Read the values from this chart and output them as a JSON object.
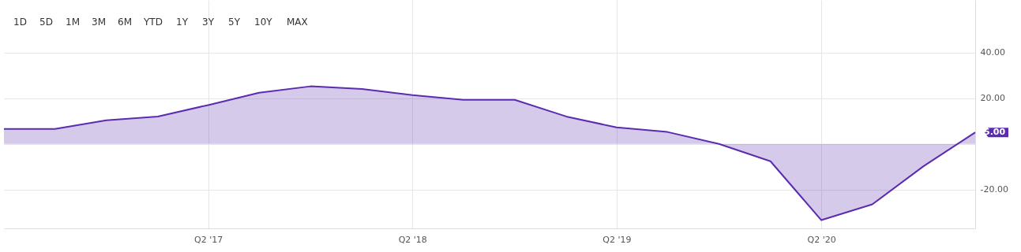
{
  "chart_data": {
    "type": "area",
    "x": [
      "2016-04-01",
      "2016-07-01",
      "2016-10-01",
      "2017-01-01",
      "2017-04-01",
      "2017-07-01",
      "2017-10-01",
      "2018-01-01",
      "2018-04-01",
      "2018-07-01",
      "2018-10-01",
      "2019-01-01",
      "2019-04-01",
      "2019-07-01",
      "2019-10-01",
      "2020-01-01",
      "2020-04-01",
      "2020-07-01",
      "2020-10-01",
      "2021-01-01"
    ],
    "series": [
      {
        "color": "#5b2bb0",
        "values": [
          6.5,
          6.5,
          10.3,
          12,
          17,
          22.4,
          25.2,
          24,
          21.4,
          19.3,
          19.3,
          12,
          7.2,
          5.2,
          0,
          -7.6,
          -33.4,
          -26.5,
          -9.7,
          5
        ]
      }
    ],
    "xlim": [
      "2016-04-01",
      "2021-01-01"
    ],
    "xticks": [
      {
        "value": "2017-04-01",
        "label": "Q2 '17"
      },
      {
        "value": "2018-04-01",
        "label": "Q2 '18"
      },
      {
        "value": "2019-04-01",
        "label": "Q2 '19"
      },
      {
        "value": "2020-04-01",
        "label": "Q2 '20"
      }
    ],
    "ylim": [
      -37,
      63
    ],
    "yticks": [
      {
        "value": 40,
        "label": "40.00"
      },
      {
        "value": 20,
        "label": "20.00"
      },
      {
        "value": 0,
        "label": null
      },
      {
        "value": -20,
        "label": "-20.00"
      }
    ],
    "grid": true,
    "annotations": [
      {
        "text": "5.00",
        "x": "2021-01-01",
        "y": 5
      },
      "1D",
      "5D",
      "1M",
      "3M",
      "6M",
      "YTD",
      "1Y",
      "3Y",
      "5Y",
      "10Y",
      "MAX"
    ]
  }
}
